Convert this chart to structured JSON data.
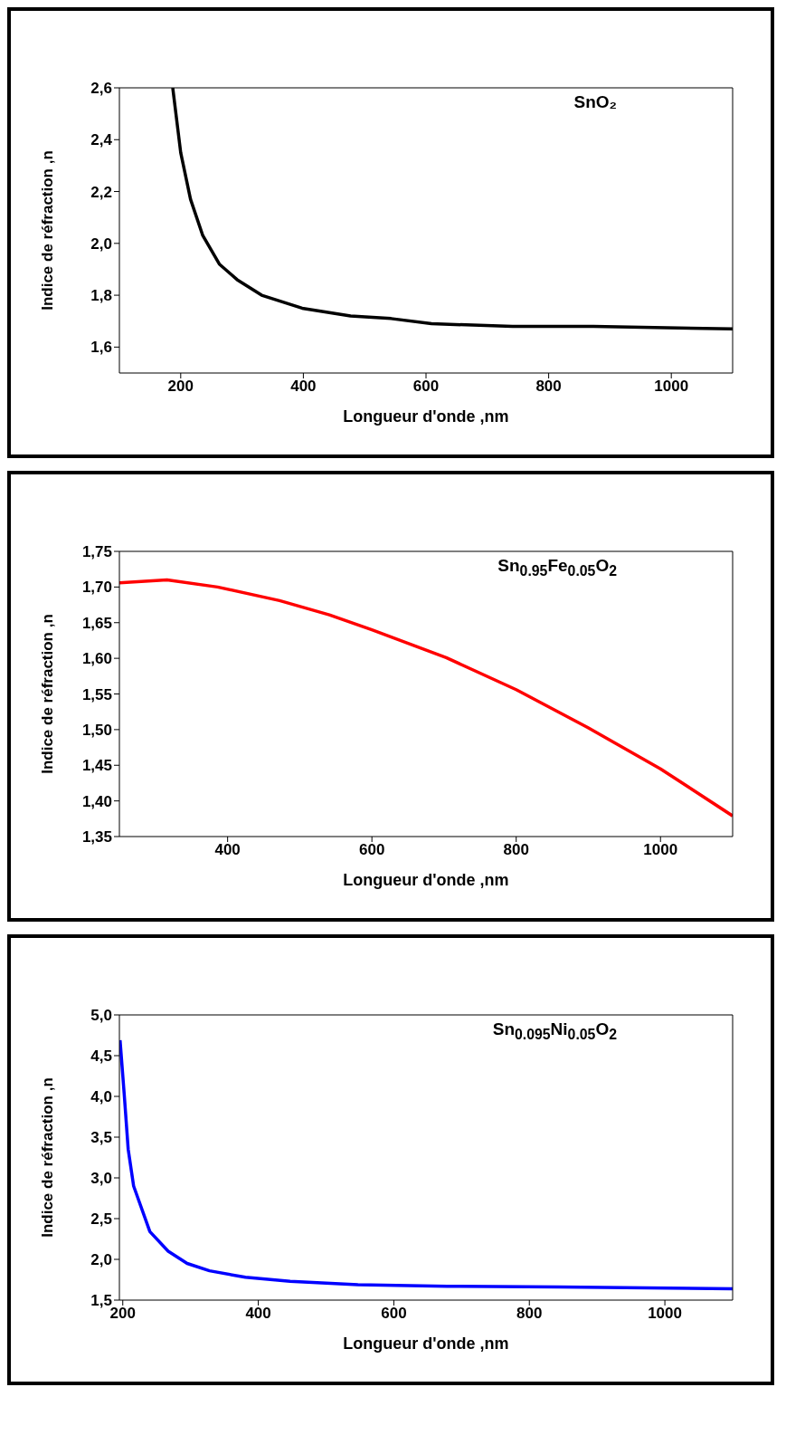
{
  "chart_data": [
    {
      "type": "line",
      "xlabel": "Longueur d'onde ,nm",
      "ylabel": "Indice de réfraction ,n",
      "annotations": [
        "SnO₂"
      ],
      "marker": "none",
      "xlim": [
        100,
        1100
      ],
      "xticks": [
        200,
        400,
        600,
        800,
        1000
      ],
      "ylim": [
        1.5,
        2.6
      ],
      "yticks": [
        {
          "value": 1.6,
          "label": "1,6"
        },
        {
          "value": 1.8,
          "label": "1,8"
        },
        {
          "value": 2.0,
          "label": "2,0"
        },
        {
          "value": 2.2,
          "label": "2,2"
        },
        {
          "value": 2.4,
          "label": "2,4"
        },
        {
          "value": 2.6,
          "label": "2,6"
        }
      ],
      "series": [
        {
          "color": "#000000",
          "x": [
            187,
            200,
            216,
            236,
            263,
            292,
            332,
            398,
            477,
            543,
            609,
            741,
            873,
            1100
          ],
          "values": [
            2.6,
            2.35,
            2.17,
            2.03,
            1.92,
            1.86,
            1.8,
            1.75,
            1.72,
            1.71,
            1.69,
            1.68,
            1.68,
            1.67
          ]
        }
      ]
    },
    {
      "type": "line",
      "xlabel": "Longueur d'onde ,nm",
      "ylabel": "Indice de réfraction ,n",
      "annotations": [
        "Sn$_{0.95}$Fe$_{0.05}$O$_{2}$"
      ],
      "marker": "none",
      "xlim": [
        250,
        1100
      ],
      "xticks": [
        400,
        600,
        800,
        1000
      ],
      "ylim": [
        1.35,
        1.75
      ],
      "yticks": [
        {
          "value": 1.35,
          "label": "1,35"
        },
        {
          "value": 1.4,
          "label": "1,40"
        },
        {
          "value": 1.45,
          "label": "1,45"
        },
        {
          "value": 1.5,
          "label": "1,50"
        },
        {
          "value": 1.55,
          "label": "1,55"
        },
        {
          "value": 1.6,
          "label": "1,60"
        },
        {
          "value": 1.65,
          "label": "1,65"
        },
        {
          "value": 1.7,
          "label": "1,70"
        },
        {
          "value": 1.75,
          "label": "1,75"
        }
      ],
      "series": [
        {
          "color": "#ff0000",
          "x": [
            250,
            316,
            386,
            472,
            541,
            600,
            703,
            800,
            899,
            1000,
            1100
          ],
          "values": [
            1.706,
            1.71,
            1.7,
            1.681,
            1.661,
            1.64,
            1.601,
            1.556,
            1.503,
            1.445,
            1.379
          ]
        }
      ]
    },
    {
      "type": "line",
      "xlabel": "Longueur d'onde ,nm",
      "ylabel": "Indice de réfraction ,n",
      "annotations": [
        "Sn$_{0.095}$Ni$_{0.05}$O$_{2}$"
      ],
      "marker": "none",
      "xlim": [
        195,
        1100
      ],
      "xticks": [
        200,
        400,
        600,
        800,
        1000
      ],
      "ylim": [
        1.5,
        5.0
      ],
      "yticks": [
        {
          "value": 1.5,
          "label": "1,5"
        },
        {
          "value": 2.0,
          "label": "2,0"
        },
        {
          "value": 2.5,
          "label": "2,5"
        },
        {
          "value": 3.0,
          "label": "3,0"
        },
        {
          "value": 3.5,
          "label": "3,5"
        },
        {
          "value": 4.0,
          "label": "4,0"
        },
        {
          "value": 4.5,
          "label": "4,5"
        },
        {
          "value": 5.0,
          "label": "5,0"
        }
      ],
      "series": [
        {
          "color": "#0000ff",
          "x": [
            196,
            202,
            208,
            216,
            240,
            267,
            295,
            328,
            381,
            447,
            547,
            679,
            845,
            1100
          ],
          "values": [
            4.69,
            4.04,
            3.35,
            2.9,
            2.34,
            2.1,
            1.95,
            1.86,
            1.78,
            1.73,
            1.69,
            1.67,
            1.66,
            1.64
          ]
        }
      ]
    }
  ]
}
